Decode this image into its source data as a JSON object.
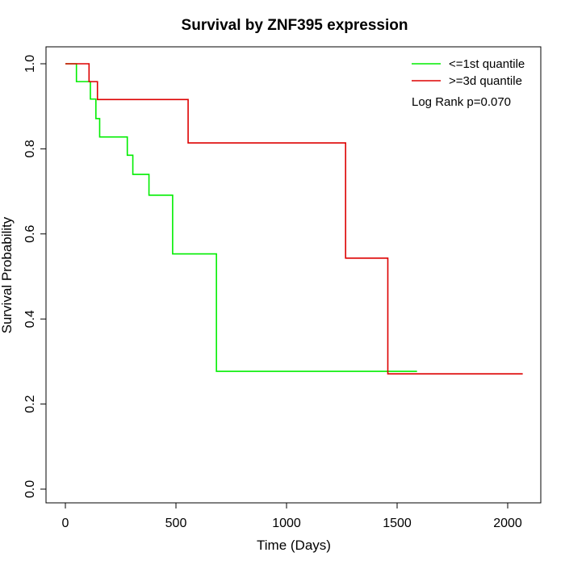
{
  "chart_data": {
    "type": "line",
    "title": "Survival by ZNF395 expression",
    "xlabel": "Time (Days)",
    "ylabel": "Survival Probability",
    "xlim": [
      0,
      2070
    ],
    "ylim": [
      0,
      1
    ],
    "x_ticks": [
      0,
      500,
      1000,
      1500,
      2000
    ],
    "x_tick_labels": [
      "0",
      "500",
      "1000",
      "1500",
      "2000"
    ],
    "y_ticks": [
      0,
      0.2,
      0.4,
      0.6,
      0.8,
      1.0
    ],
    "y_tick_labels": [
      "0.0",
      "0.2",
      "0.4",
      "0.6",
      "0.8",
      "1.0"
    ],
    "grid": false,
    "legend_position": "top-right",
    "series": [
      {
        "name": "<=1st quantile",
        "color": "#00ee00",
        "steps": [
          [
            0,
            1.0
          ],
          [
            50,
            0.958
          ],
          [
            113,
            0.917
          ],
          [
            138,
            0.871
          ],
          [
            155,
            0.828
          ],
          [
            280,
            0.785
          ],
          [
            305,
            0.74
          ],
          [
            378,
            0.691
          ],
          [
            485,
            0.553
          ],
          [
            683,
            0.277
          ],
          [
            1590,
            0.277
          ]
        ]
      },
      {
        "name": ">=3d quantile",
        "color": "#dd0000",
        "steps": [
          [
            0,
            1.0
          ],
          [
            107,
            0.958
          ],
          [
            145,
            0.916
          ],
          [
            555,
            0.814
          ],
          [
            1265,
            0.814
          ],
          [
            1267,
            0.543
          ],
          [
            1458,
            0.271
          ],
          [
            2068,
            0.271
          ]
        ]
      }
    ],
    "annotation": "Log Rank p=0.070"
  }
}
